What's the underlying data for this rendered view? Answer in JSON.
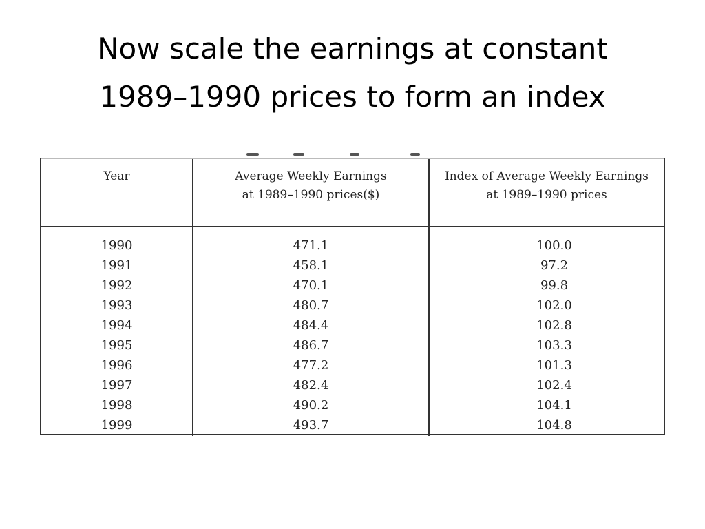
{
  "title": {
    "line1": "Now scale the earnings at constant",
    "line2": "1989–1990 prices to form an index"
  },
  "table": {
    "headers": {
      "year": "Year",
      "earnings_line1": "Average Weekly Earnings",
      "earnings_line2": "at 1989–1990 prices($)",
      "index_line1": "Index of Average Weekly Earnings",
      "index_line2": "at 1989–1990 prices"
    },
    "rows": [
      {
        "year": "1990",
        "earnings": "471.1",
        "index": "100.0"
      },
      {
        "year": "1991",
        "earnings": "458.1",
        "index": "97.2"
      },
      {
        "year": "1992",
        "earnings": "470.1",
        "index": "99.8"
      },
      {
        "year": "1993",
        "earnings": "480.7",
        "index": "102.0"
      },
      {
        "year": "1994",
        "earnings": "484.4",
        "index": "102.8"
      },
      {
        "year": "1995",
        "earnings": "486.7",
        "index": "103.3"
      },
      {
        "year": "1996",
        "earnings": "477.2",
        "index": "101.3"
      },
      {
        "year": "1997",
        "earnings": "482.4",
        "index": "102.4"
      },
      {
        "year": "1998",
        "earnings": "490.2",
        "index": "104.1"
      },
      {
        "year": "1999",
        "earnings": "493.7",
        "index": "104.8"
      }
    ]
  }
}
